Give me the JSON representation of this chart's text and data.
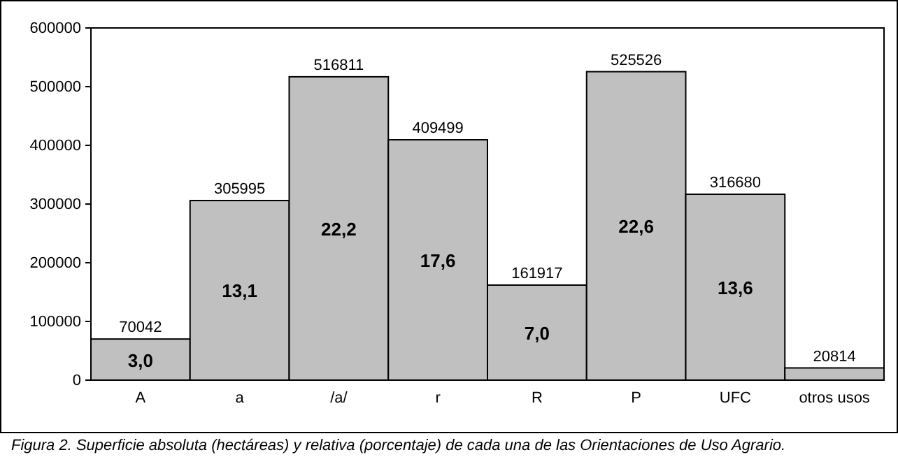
{
  "chart_data": {
    "type": "bar",
    "categories": [
      "A",
      "a",
      "/a/",
      "r",
      "R",
      "P",
      "UFC",
      "otros usos"
    ],
    "values": [
      70042,
      305995,
      516811,
      409499,
      161917,
      525526,
      316680,
      20814
    ],
    "color": "#c0c0c0",
    "ylim": [
      0,
      600000
    ],
    "yticks": [
      0,
      100000,
      200000,
      300000,
      400000,
      500000,
      600000
    ],
    "grid": false,
    "value_labels": [
      "70042",
      "305995",
      "516811",
      "409499",
      "161917",
      "525526",
      "316680",
      "20814"
    ],
    "annotations": [
      "3,0",
      "13,1",
      "22,2",
      "17,6",
      "7,0",
      "22,6",
      "13,6",
      "Figura 2. Superficie absoluta (hectáreas) y relativa (porcentaje) de cada una de las Orientaciones de Uso Agrario."
    ]
  }
}
